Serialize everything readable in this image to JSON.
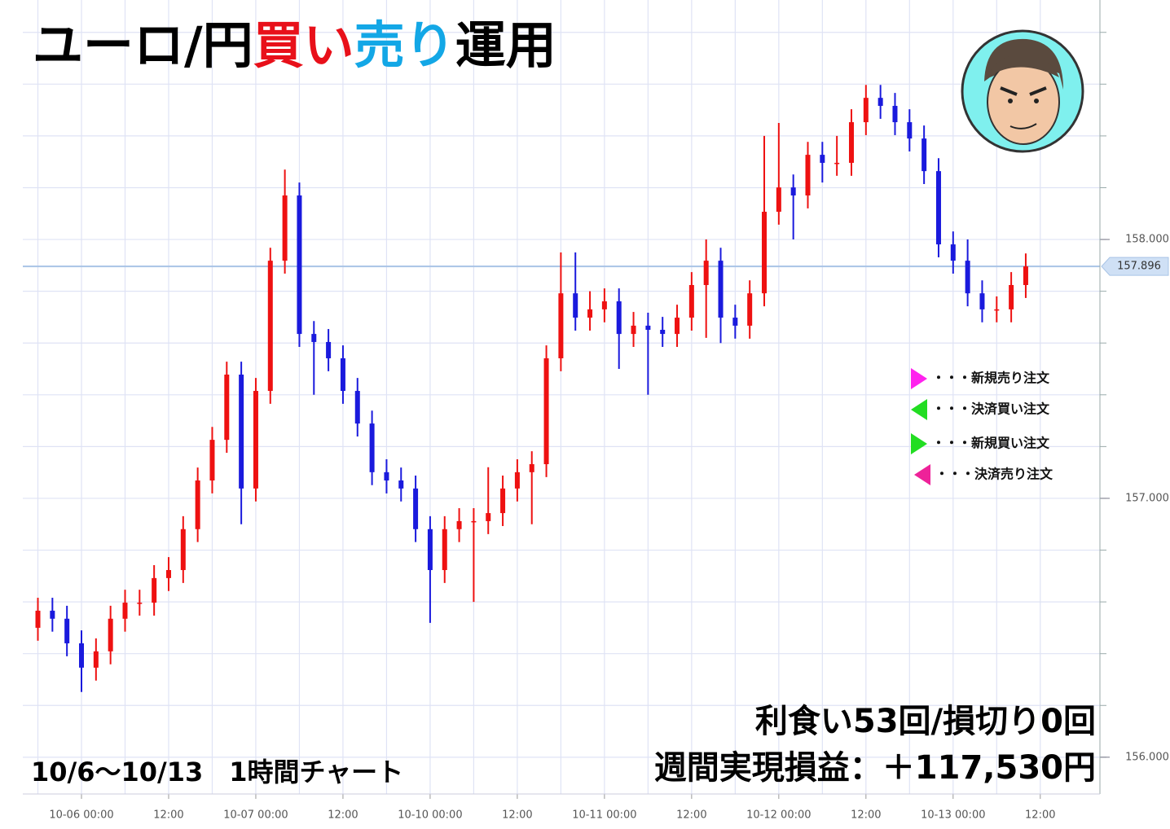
{
  "chart_data": {
    "type": "candlestick",
    "title_parts": [
      {
        "text": "ユーロ/円",
        "color": "#000000"
      },
      {
        "text": "買い",
        "color": "#e8101a"
      },
      {
        "text": "売り",
        "color": "#13a7e6"
      },
      {
        "text": "運用",
        "color": "#000000"
      }
    ],
    "subtitle": "10/6〜10/13　1時間チャート",
    "annotations": [
      "利食い53回/損切り0回",
      "週間実現損益：＋117,530円"
    ],
    "up_color": "#ee1111",
    "down_color": "#1a1add",
    "grid": true,
    "categories": [
      null,
      null,
      null,
      "10-06 00:00",
      null,
      null,
      null,
      null,
      null,
      "12:00",
      null,
      null,
      null,
      null,
      null,
      "10-07 00:00",
      null,
      null,
      null,
      null,
      null,
      "12:00",
      null,
      null,
      null,
      null,
      null,
      "10-10 00:00",
      null,
      null,
      null,
      null,
      null,
      "12:00",
      null,
      null,
      null,
      null,
      null,
      "10-11 00:00",
      null,
      null,
      null,
      null,
      null,
      "12:00",
      null,
      null,
      null,
      null,
      null,
      "10-12 00:00",
      null,
      null,
      null,
      null,
      null,
      "12:00",
      null,
      null,
      null,
      null,
      null,
      "10-13 00:00",
      null,
      null,
      null,
      null,
      null,
      "12:00"
    ],
    "open": [
      156.5,
      156.566,
      156.535,
      156.44,
      156.346,
      156.409,
      156.535,
      156.597,
      156.597,
      156.692,
      156.723,
      156.881,
      157.069,
      157.226,
      157.478,
      157.038,
      157.415,
      157.918,
      158.17,
      157.635,
      157.604,
      157.541,
      157.415,
      157.289,
      157.101,
      157.069,
      157.038,
      156.881,
      156.723,
      156.881,
      156.912,
      156.912,
      156.943,
      157.038,
      157.101,
      157.132,
      157.541,
      157.792,
      157.698,
      157.73,
      157.761,
      157.635,
      157.667,
      157.651,
      157.635,
      157.698,
      157.824,
      157.918,
      157.698,
      157.667,
      157.792,
      158.107,
      158.201,
      158.17,
      158.327,
      158.296,
      158.296,
      158.453,
      158.547,
      158.516,
      158.453,
      158.39,
      158.264,
      157.981,
      157.918,
      157.792,
      157.73,
      157.73,
      157.824,
      null
    ],
    "high": [
      156.616,
      156.616,
      156.585,
      156.49,
      156.459,
      156.585,
      156.647,
      156.647,
      156.742,
      156.773,
      156.931,
      157.119,
      157.276,
      157.528,
      157.528,
      157.465,
      157.968,
      158.27,
      158.22,
      157.685,
      157.654,
      157.591,
      157.465,
      157.339,
      157.151,
      157.119,
      157.088,
      156.931,
      156.931,
      156.962,
      156.962,
      157.12,
      157.088,
      157.151,
      157.182,
      157.591,
      157.95,
      157.95,
      157.8,
      157.811,
      157.811,
      157.72,
      157.717,
      157.701,
      157.748,
      157.874,
      158.0,
      157.968,
      157.748,
      157.842,
      158.4,
      158.45,
      158.251,
      158.377,
      158.377,
      158.4,
      158.503,
      158.597,
      158.597,
      158.566,
      158.503,
      158.44,
      158.314,
      158.031,
      158.0,
      157.842,
      157.78,
      157.874,
      157.946,
      null
    ],
    "low": [
      156.45,
      156.485,
      156.39,
      156.252,
      156.296,
      156.359,
      156.485,
      156.547,
      156.547,
      156.642,
      156.673,
      156.831,
      157.019,
      157.176,
      156.9,
      156.988,
      157.365,
      157.868,
      157.585,
      157.4,
      157.491,
      157.365,
      157.239,
      157.051,
      157.019,
      156.988,
      156.831,
      156.519,
      156.673,
      156.831,
      156.6,
      156.862,
      156.893,
      156.988,
      156.9,
      157.082,
      157.491,
      157.648,
      157.648,
      157.68,
      157.5,
      157.585,
      157.4,
      157.585,
      157.585,
      157.648,
      157.62,
      157.6,
      157.617,
      157.617,
      157.742,
      158.057,
      158.0,
      158.12,
      158.22,
      158.246,
      158.246,
      158.403,
      158.466,
      158.403,
      158.34,
      158.214,
      157.931,
      157.868,
      157.742,
      157.68,
      157.68,
      157.68,
      157.774,
      null
    ],
    "close": [
      156.566,
      156.535,
      156.44,
      156.346,
      156.409,
      156.535,
      156.597,
      156.597,
      156.692,
      156.723,
      156.881,
      157.069,
      157.226,
      157.478,
      157.038,
      157.415,
      157.918,
      158.17,
      157.635,
      157.604,
      157.541,
      157.415,
      157.289,
      157.101,
      157.069,
      157.038,
      156.881,
      156.723,
      156.881,
      156.912,
      156.912,
      156.943,
      157.038,
      157.101,
      157.132,
      157.541,
      157.792,
      157.698,
      157.73,
      157.761,
      157.635,
      157.667,
      157.651,
      157.635,
      157.698,
      157.824,
      157.918,
      157.698,
      157.667,
      157.792,
      158.107,
      158.201,
      158.17,
      158.327,
      158.296,
      158.296,
      158.453,
      158.547,
      158.516,
      158.453,
      158.39,
      158.264,
      157.981,
      157.918,
      157.792,
      157.73,
      157.73,
      157.824,
      157.896,
      null
    ],
    "last_price": 157.896,
    "ylim": [
      155.858,
      158.925
    ],
    "yticks": [
      {
        "value": 156,
        "label": "156.000"
      },
      {
        "value": 157,
        "label": "157.000"
      },
      {
        "value": 158,
        "label": "158.000"
      }
    ],
    "ygrid": [
      156.0,
      156.2,
      156.4,
      156.6,
      156.8,
      157.0,
      157.2,
      157.4,
      157.6,
      157.8,
      158.0,
      158.2,
      158.4,
      158.6,
      158.8
    ],
    "legend": [
      {
        "label": "・・・新規売り注文",
        "color": "#ff22ee",
        "direction": "right"
      },
      {
        "label": "・・・決済買い注文",
        "color": "#22dd22",
        "direction": "left"
      },
      {
        "label": "・・・新規買い注文",
        "color": "#22dd22",
        "direction": "right"
      },
      {
        "label": "・・・決済売り注文",
        "color": "#ee2299",
        "direction": "left"
      }
    ]
  }
}
